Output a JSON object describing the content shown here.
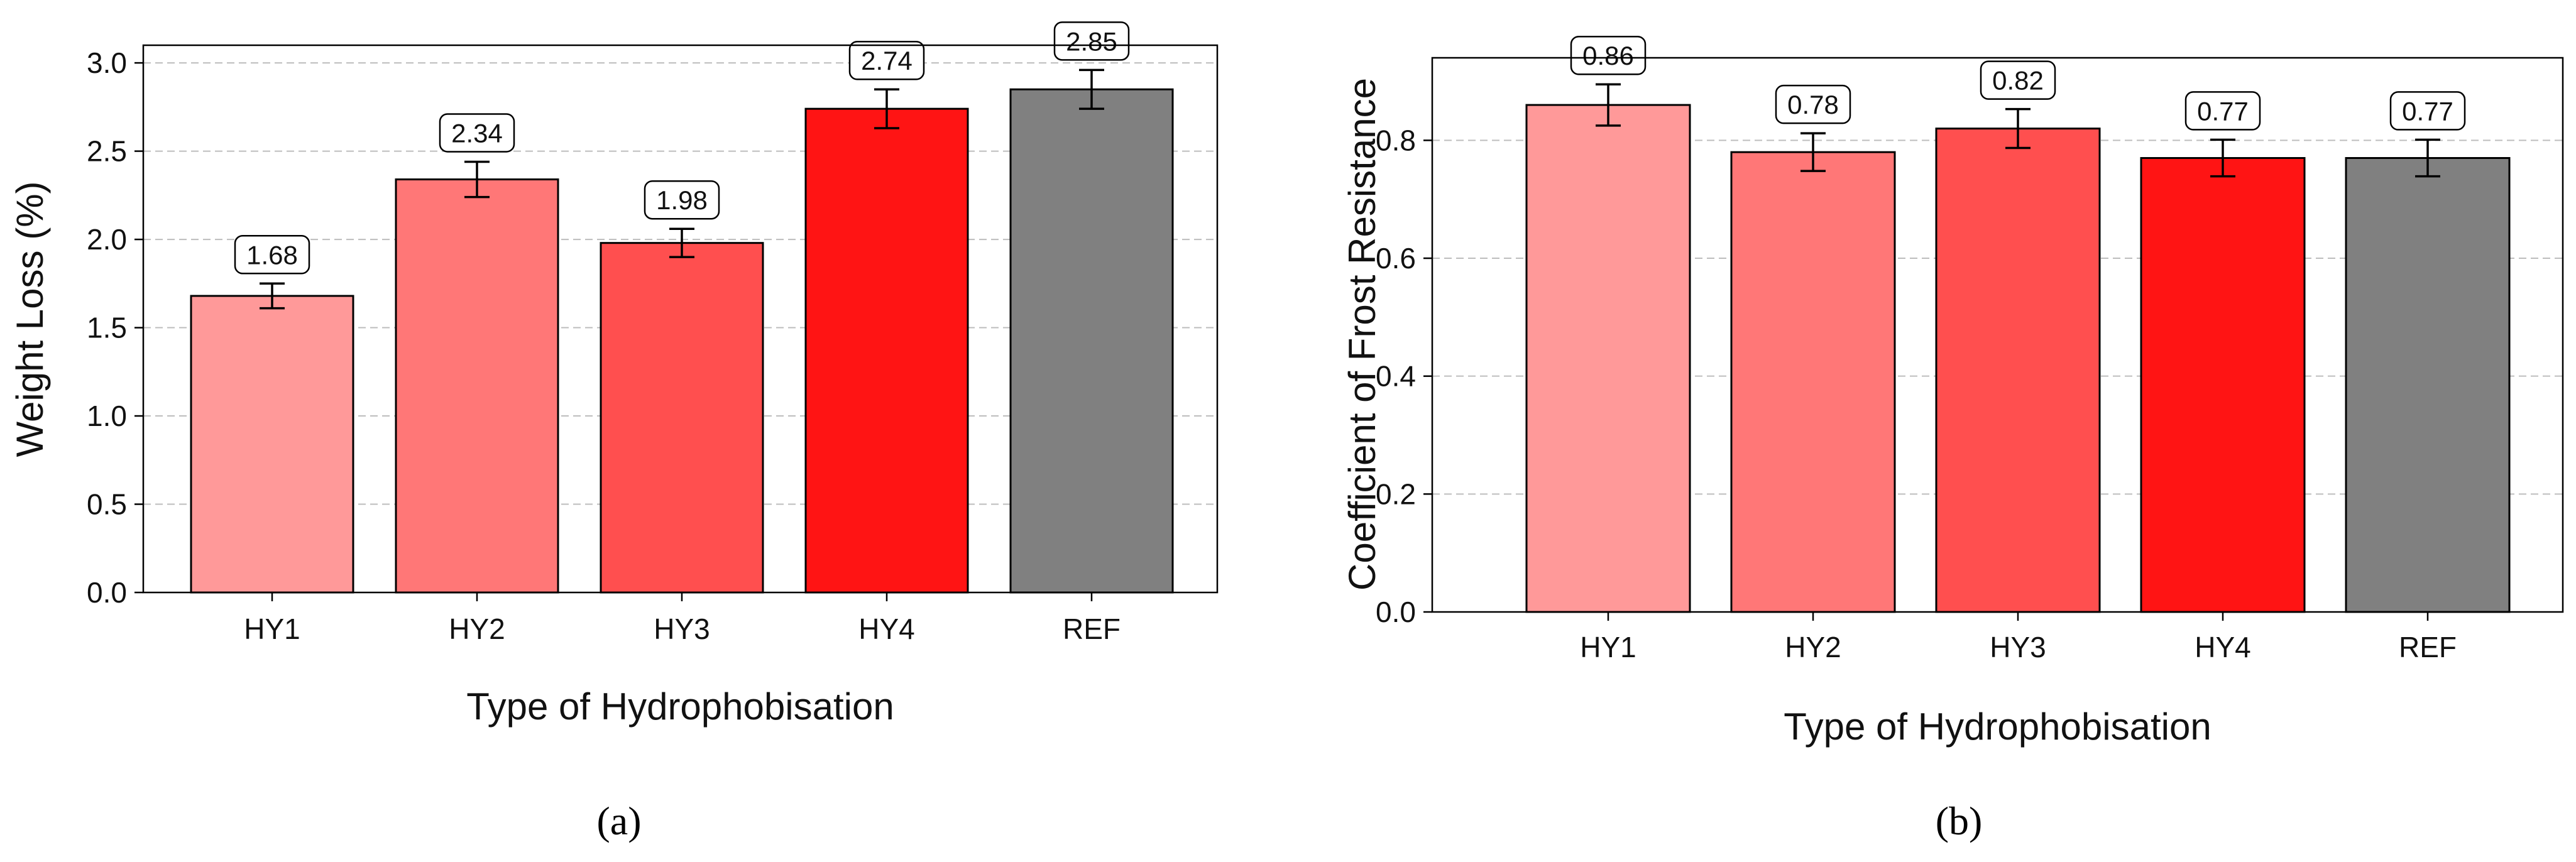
{
  "chart_data": [
    {
      "type": "bar",
      "panel_label": "(a)",
      "categories": [
        "HY1",
        "HY2",
        "HY3",
        "HY4",
        "REF"
      ],
      "values": [
        1.68,
        2.34,
        1.98,
        2.74,
        2.85
      ],
      "errors": [
        0.07,
        0.1,
        0.08,
        0.11,
        0.11
      ],
      "value_labels": [
        "1.68",
        "2.34",
        "1.98",
        "2.74",
        "2.85"
      ],
      "colors": [
        "#ff9999",
        "#ff7777",
        "#ff4f4f",
        "#ff1414",
        "#808080"
      ],
      "title": "",
      "xlabel": "Type of Hydrophobisation",
      "ylabel": "Weight Loss (%)",
      "ylim": [
        0,
        3.1
      ],
      "yticks": [
        0.0,
        0.5,
        1.0,
        1.5,
        2.0,
        2.5,
        3.0
      ],
      "ytick_labels": [
        "0.0",
        "0.5",
        "1.0",
        "1.5",
        "2.0",
        "2.5",
        "3.0"
      ],
      "grid": true
    },
    {
      "type": "bar",
      "panel_label": "(b)",
      "categories": [
        "HY1",
        "HY2",
        "HY3",
        "HY4",
        "REF"
      ],
      "values": [
        0.86,
        0.78,
        0.82,
        0.77,
        0.77
      ],
      "errors": [
        0.035,
        0.032,
        0.033,
        0.031,
        0.031
      ],
      "value_labels": [
        "0.86",
        "0.78",
        "0.82",
        "0.77",
        "0.77"
      ],
      "colors": [
        "#ff9999",
        "#ff7777",
        "#ff4f4f",
        "#ff1414",
        "#808080"
      ],
      "title": "",
      "xlabel": "Type of Hydrophobisation",
      "ylabel": "Coefficient of Frost Resistance",
      "ylim": [
        0,
        0.94
      ],
      "yticks": [
        0.0,
        0.2,
        0.4,
        0.6,
        0.8
      ],
      "ytick_labels": [
        "0.0",
        "0.2",
        "0.4",
        "0.6",
        "0.8"
      ],
      "grid": true
    }
  ]
}
